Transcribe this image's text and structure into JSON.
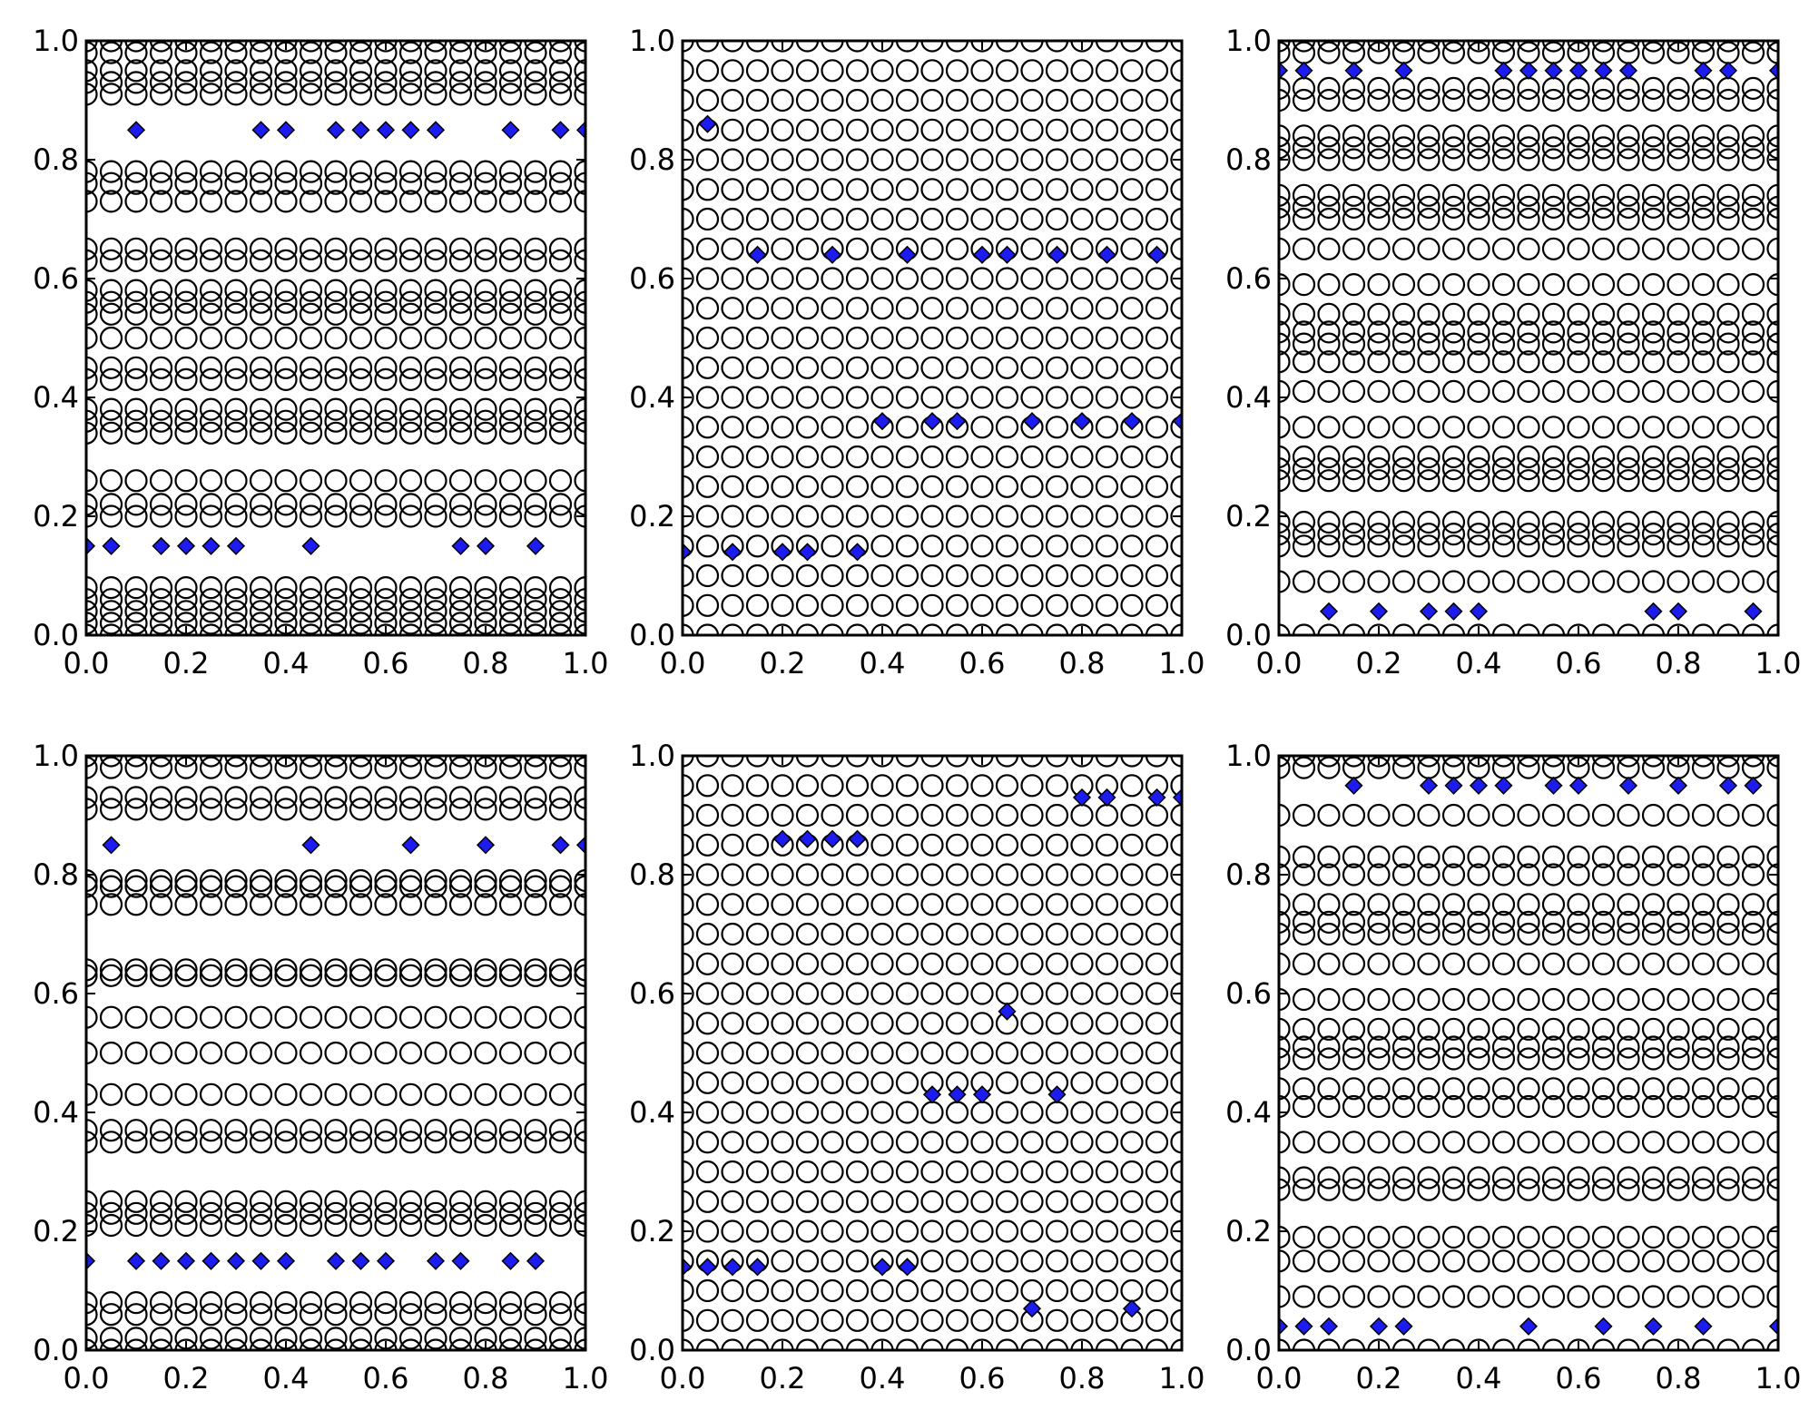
{
  "colors": {
    "circle_edge": "#000000",
    "diamond_fill": "#1c1cf0",
    "axis": "#000000",
    "background": "#ffffff"
  },
  "chart_data": [
    {
      "type": "scatter",
      "panel": "top-left",
      "xlim": [
        0,
        1
      ],
      "ylim": [
        0,
        1
      ],
      "xticks": [
        "0.0",
        "0.2",
        "0.4",
        "0.6",
        "0.8",
        "1.0"
      ],
      "yticks": [
        "0.0",
        "0.2",
        "0.4",
        "0.6",
        "0.8",
        "1.0"
      ],
      "x_grid": [
        0,
        0.05,
        0.1,
        0.15,
        0.2,
        0.25,
        0.3,
        0.35,
        0.4,
        0.45,
        0.5,
        0.55,
        0.6,
        0.65,
        0.7,
        0.75,
        0.8,
        0.85,
        0.9,
        0.95,
        1.0
      ],
      "series": [
        {
          "marker": "open-circle",
          "y_rows": [
            0.0,
            0.02,
            0.04,
            0.06,
            0.08,
            0.2,
            0.22,
            0.26,
            0.34,
            0.36,
            0.38,
            0.43,
            0.45,
            0.5,
            0.54,
            0.56,
            0.58,
            0.63,
            0.65,
            0.73,
            0.76,
            0.78,
            0.91,
            0.93,
            0.95,
            0.98,
            1.0
          ]
        },
        {
          "marker": "blue-diamond",
          "points": [
            [
              0,
              0.15
            ],
            [
              0.05,
              0.15
            ],
            [
              0.15,
              0.15
            ],
            [
              0.2,
              0.15
            ],
            [
              0.25,
              0.15
            ],
            [
              0.3,
              0.15
            ],
            [
              0.45,
              0.15
            ],
            [
              0.75,
              0.15
            ],
            [
              0.8,
              0.15
            ],
            [
              0.9,
              0.15
            ],
            [
              0.1,
              0.85
            ],
            [
              0.35,
              0.85
            ],
            [
              0.4,
              0.85
            ],
            [
              0.5,
              0.85
            ],
            [
              0.55,
              0.85
            ],
            [
              0.6,
              0.85
            ],
            [
              0.65,
              0.85
            ],
            [
              0.7,
              0.85
            ],
            [
              0.85,
              0.85
            ],
            [
              0.95,
              0.85
            ],
            [
              1.0,
              0.85
            ]
          ]
        }
      ]
    },
    {
      "type": "scatter",
      "panel": "top-middle",
      "xlim": [
        0,
        1
      ],
      "ylim": [
        0,
        1
      ],
      "xticks": [
        "0.0",
        "0.2",
        "0.4",
        "0.6",
        "0.8",
        "1.0"
      ],
      "yticks": [
        "0.0",
        "0.2",
        "0.4",
        "0.6",
        "0.8",
        "1.0"
      ],
      "x_grid": [
        0,
        0.05,
        0.1,
        0.15,
        0.2,
        0.25,
        0.3,
        0.35,
        0.4,
        0.45,
        0.5,
        0.55,
        0.6,
        0.65,
        0.7,
        0.75,
        0.8,
        0.85,
        0.9,
        0.95,
        1.0
      ],
      "series": [
        {
          "marker": "open-circle",
          "y_rows": [
            0.0,
            0.05,
            0.1,
            0.15,
            0.2,
            0.25,
            0.3,
            0.35,
            0.4,
            0.45,
            0.5,
            0.55,
            0.6,
            0.65,
            0.7,
            0.75,
            0.8,
            0.85,
            0.9,
            0.95,
            1.0
          ]
        },
        {
          "marker": "blue-diamond",
          "points": [
            [
              0,
              0.14
            ],
            [
              0.1,
              0.14
            ],
            [
              0.2,
              0.14
            ],
            [
              0.25,
              0.14
            ],
            [
              0.35,
              0.14
            ],
            [
              0.4,
              0.36
            ],
            [
              0.5,
              0.36
            ],
            [
              0.55,
              0.36
            ],
            [
              0.7,
              0.36
            ],
            [
              0.8,
              0.36
            ],
            [
              0.9,
              0.36
            ],
            [
              1.0,
              0.36
            ],
            [
              0.15,
              0.64
            ],
            [
              0.3,
              0.64
            ],
            [
              0.45,
              0.64
            ],
            [
              0.6,
              0.64
            ],
            [
              0.65,
              0.64
            ],
            [
              0.75,
              0.64
            ],
            [
              0.85,
              0.64
            ],
            [
              0.95,
              0.64
            ],
            [
              0.05,
              0.86
            ]
          ]
        }
      ]
    },
    {
      "type": "scatter",
      "panel": "top-right",
      "xlim": [
        0,
        1
      ],
      "ylim": [
        0,
        1
      ],
      "xticks": [
        "0.0",
        "0.2",
        "0.4",
        "0.6",
        "0.8",
        "1.0"
      ],
      "yticks": [
        "0.0",
        "0.2",
        "0.4",
        "0.6",
        "0.8",
        "1.0"
      ],
      "x_grid": [
        0,
        0.05,
        0.1,
        0.15,
        0.2,
        0.25,
        0.3,
        0.35,
        0.4,
        0.45,
        0.5,
        0.55,
        0.6,
        0.65,
        0.7,
        0.75,
        0.8,
        0.85,
        0.9,
        0.95,
        1.0
      ],
      "series": [
        {
          "marker": "open-circle",
          "y_rows": [
            0.0,
            0.09,
            0.15,
            0.17,
            0.19,
            0.26,
            0.28,
            0.3,
            0.35,
            0.41,
            0.46,
            0.49,
            0.51,
            0.54,
            0.59,
            0.65,
            0.7,
            0.72,
            0.74,
            0.8,
            0.82,
            0.84,
            0.9,
            0.92,
            0.98,
            1.0
          ]
        },
        {
          "marker": "blue-diamond",
          "points": [
            [
              0.1,
              0.04
            ],
            [
              0.2,
              0.04
            ],
            [
              0.3,
              0.04
            ],
            [
              0.35,
              0.04
            ],
            [
              0.4,
              0.04
            ],
            [
              0.75,
              0.04
            ],
            [
              0.8,
              0.04
            ],
            [
              0.95,
              0.04
            ],
            [
              0,
              0.95
            ],
            [
              0.05,
              0.95
            ],
            [
              0.15,
              0.95
            ],
            [
              0.25,
              0.95
            ],
            [
              0.45,
              0.95
            ],
            [
              0.5,
              0.95
            ],
            [
              0.55,
              0.95
            ],
            [
              0.6,
              0.95
            ],
            [
              0.65,
              0.95
            ],
            [
              0.7,
              0.95
            ],
            [
              0.85,
              0.95
            ],
            [
              0.9,
              0.95
            ],
            [
              1.0,
              0.95
            ]
          ]
        }
      ]
    },
    {
      "type": "scatter",
      "panel": "bottom-left",
      "xlim": [
        0,
        1
      ],
      "ylim": [
        0,
        1
      ],
      "xticks": [
        "0.0",
        "0.2",
        "0.4",
        "0.6",
        "0.8",
        "1.0"
      ],
      "yticks": [
        "0.0",
        "0.2",
        "0.4",
        "0.6",
        "0.8",
        "1.0"
      ],
      "x_grid": [
        0,
        0.05,
        0.1,
        0.15,
        0.2,
        0.25,
        0.3,
        0.35,
        0.4,
        0.45,
        0.5,
        0.55,
        0.6,
        0.65,
        0.7,
        0.75,
        0.8,
        0.85,
        0.9,
        0.95,
        1.0
      ],
      "series": [
        {
          "marker": "open-circle",
          "y_rows": [
            0.0,
            0.02,
            0.06,
            0.08,
            0.21,
            0.23,
            0.25,
            0.35,
            0.37,
            0.43,
            0.5,
            0.56,
            0.63,
            0.64,
            0.75,
            0.78,
            0.79,
            0.91,
            0.93,
            0.98,
            1.0
          ]
        },
        {
          "marker": "blue-diamond",
          "points": [
            [
              0,
              0.15
            ],
            [
              0.1,
              0.15
            ],
            [
              0.15,
              0.15
            ],
            [
              0.2,
              0.15
            ],
            [
              0.25,
              0.15
            ],
            [
              0.3,
              0.15
            ],
            [
              0.35,
              0.15
            ],
            [
              0.4,
              0.15
            ],
            [
              0.5,
              0.15
            ],
            [
              0.55,
              0.15
            ],
            [
              0.6,
              0.15
            ],
            [
              0.7,
              0.15
            ],
            [
              0.75,
              0.15
            ],
            [
              0.85,
              0.15
            ],
            [
              0.9,
              0.15
            ],
            [
              0.05,
              0.85
            ],
            [
              0.45,
              0.85
            ],
            [
              0.65,
              0.85
            ],
            [
              0.8,
              0.85
            ],
            [
              0.95,
              0.85
            ],
            [
              1.0,
              0.85
            ]
          ]
        }
      ]
    },
    {
      "type": "scatter",
      "panel": "bottom-middle",
      "xlim": [
        0,
        1
      ],
      "ylim": [
        0,
        1
      ],
      "xticks": [
        "0.0",
        "0.2",
        "0.4",
        "0.6",
        "0.8",
        "1.0"
      ],
      "yticks": [
        "0.0",
        "0.2",
        "0.4",
        "0.6",
        "0.8",
        "1.0"
      ],
      "x_grid": [
        0,
        0.05,
        0.1,
        0.15,
        0.2,
        0.25,
        0.3,
        0.35,
        0.4,
        0.45,
        0.5,
        0.55,
        0.6,
        0.65,
        0.7,
        0.75,
        0.8,
        0.85,
        0.9,
        0.95,
        1.0
      ],
      "series": [
        {
          "marker": "open-circle",
          "y_rows": [
            0.0,
            0.05,
            0.1,
            0.15,
            0.2,
            0.25,
            0.3,
            0.35,
            0.4,
            0.45,
            0.5,
            0.55,
            0.6,
            0.65,
            0.7,
            0.75,
            0.8,
            0.85,
            0.9,
            0.95,
            1.0
          ]
        },
        {
          "marker": "blue-diamond",
          "points": [
            [
              0.7,
              0.07
            ],
            [
              0.9,
              0.07
            ],
            [
              0,
              0.14
            ],
            [
              0.05,
              0.14
            ],
            [
              0.1,
              0.14
            ],
            [
              0.15,
              0.14
            ],
            [
              0.4,
              0.14
            ],
            [
              0.45,
              0.14
            ],
            [
              0.5,
              0.43
            ],
            [
              0.55,
              0.43
            ],
            [
              0.6,
              0.43
            ],
            [
              0.75,
              0.43
            ],
            [
              0.65,
              0.57
            ],
            [
              0.2,
              0.86
            ],
            [
              0.25,
              0.86
            ],
            [
              0.3,
              0.86
            ],
            [
              0.35,
              0.86
            ],
            [
              0.8,
              0.93
            ],
            [
              0.85,
              0.93
            ],
            [
              0.95,
              0.93
            ],
            [
              1.0,
              0.93
            ]
          ]
        }
      ]
    },
    {
      "type": "scatter",
      "panel": "bottom-right",
      "xlim": [
        0,
        1
      ],
      "ylim": [
        0,
        1
      ],
      "xticks": [
        "0.0",
        "0.2",
        "0.4",
        "0.6",
        "0.8",
        "1.0"
      ],
      "yticks": [
        "0.0",
        "0.2",
        "0.4",
        "0.6",
        "0.8",
        "1.0"
      ],
      "x_grid": [
        0,
        0.05,
        0.1,
        0.15,
        0.2,
        0.25,
        0.3,
        0.35,
        0.4,
        0.45,
        0.5,
        0.55,
        0.6,
        0.65,
        0.7,
        0.75,
        0.8,
        0.85,
        0.9,
        0.95,
        1.0
      ],
      "series": [
        {
          "marker": "open-circle",
          "y_rows": [
            0.0,
            0.09,
            0.15,
            0.19,
            0.27,
            0.29,
            0.35,
            0.41,
            0.44,
            0.49,
            0.51,
            0.54,
            0.59,
            0.65,
            0.7,
            0.72,
            0.75,
            0.8,
            0.83,
            0.9,
            0.98,
            1.0
          ]
        },
        {
          "marker": "blue-diamond",
          "points": [
            [
              0,
              0.04
            ],
            [
              0.05,
              0.04
            ],
            [
              0.1,
              0.04
            ],
            [
              0.2,
              0.04
            ],
            [
              0.25,
              0.04
            ],
            [
              0.5,
              0.04
            ],
            [
              0.65,
              0.04
            ],
            [
              0.75,
              0.04
            ],
            [
              0.85,
              0.04
            ],
            [
              1.0,
              0.04
            ],
            [
              0.15,
              0.95
            ],
            [
              0.3,
              0.95
            ],
            [
              0.35,
              0.95
            ],
            [
              0.4,
              0.95
            ],
            [
              0.45,
              0.95
            ],
            [
              0.55,
              0.95
            ],
            [
              0.6,
              0.95
            ],
            [
              0.7,
              0.95
            ],
            [
              0.8,
              0.95
            ],
            [
              0.9,
              0.95
            ],
            [
              0.95,
              0.95
            ]
          ]
        }
      ]
    }
  ]
}
